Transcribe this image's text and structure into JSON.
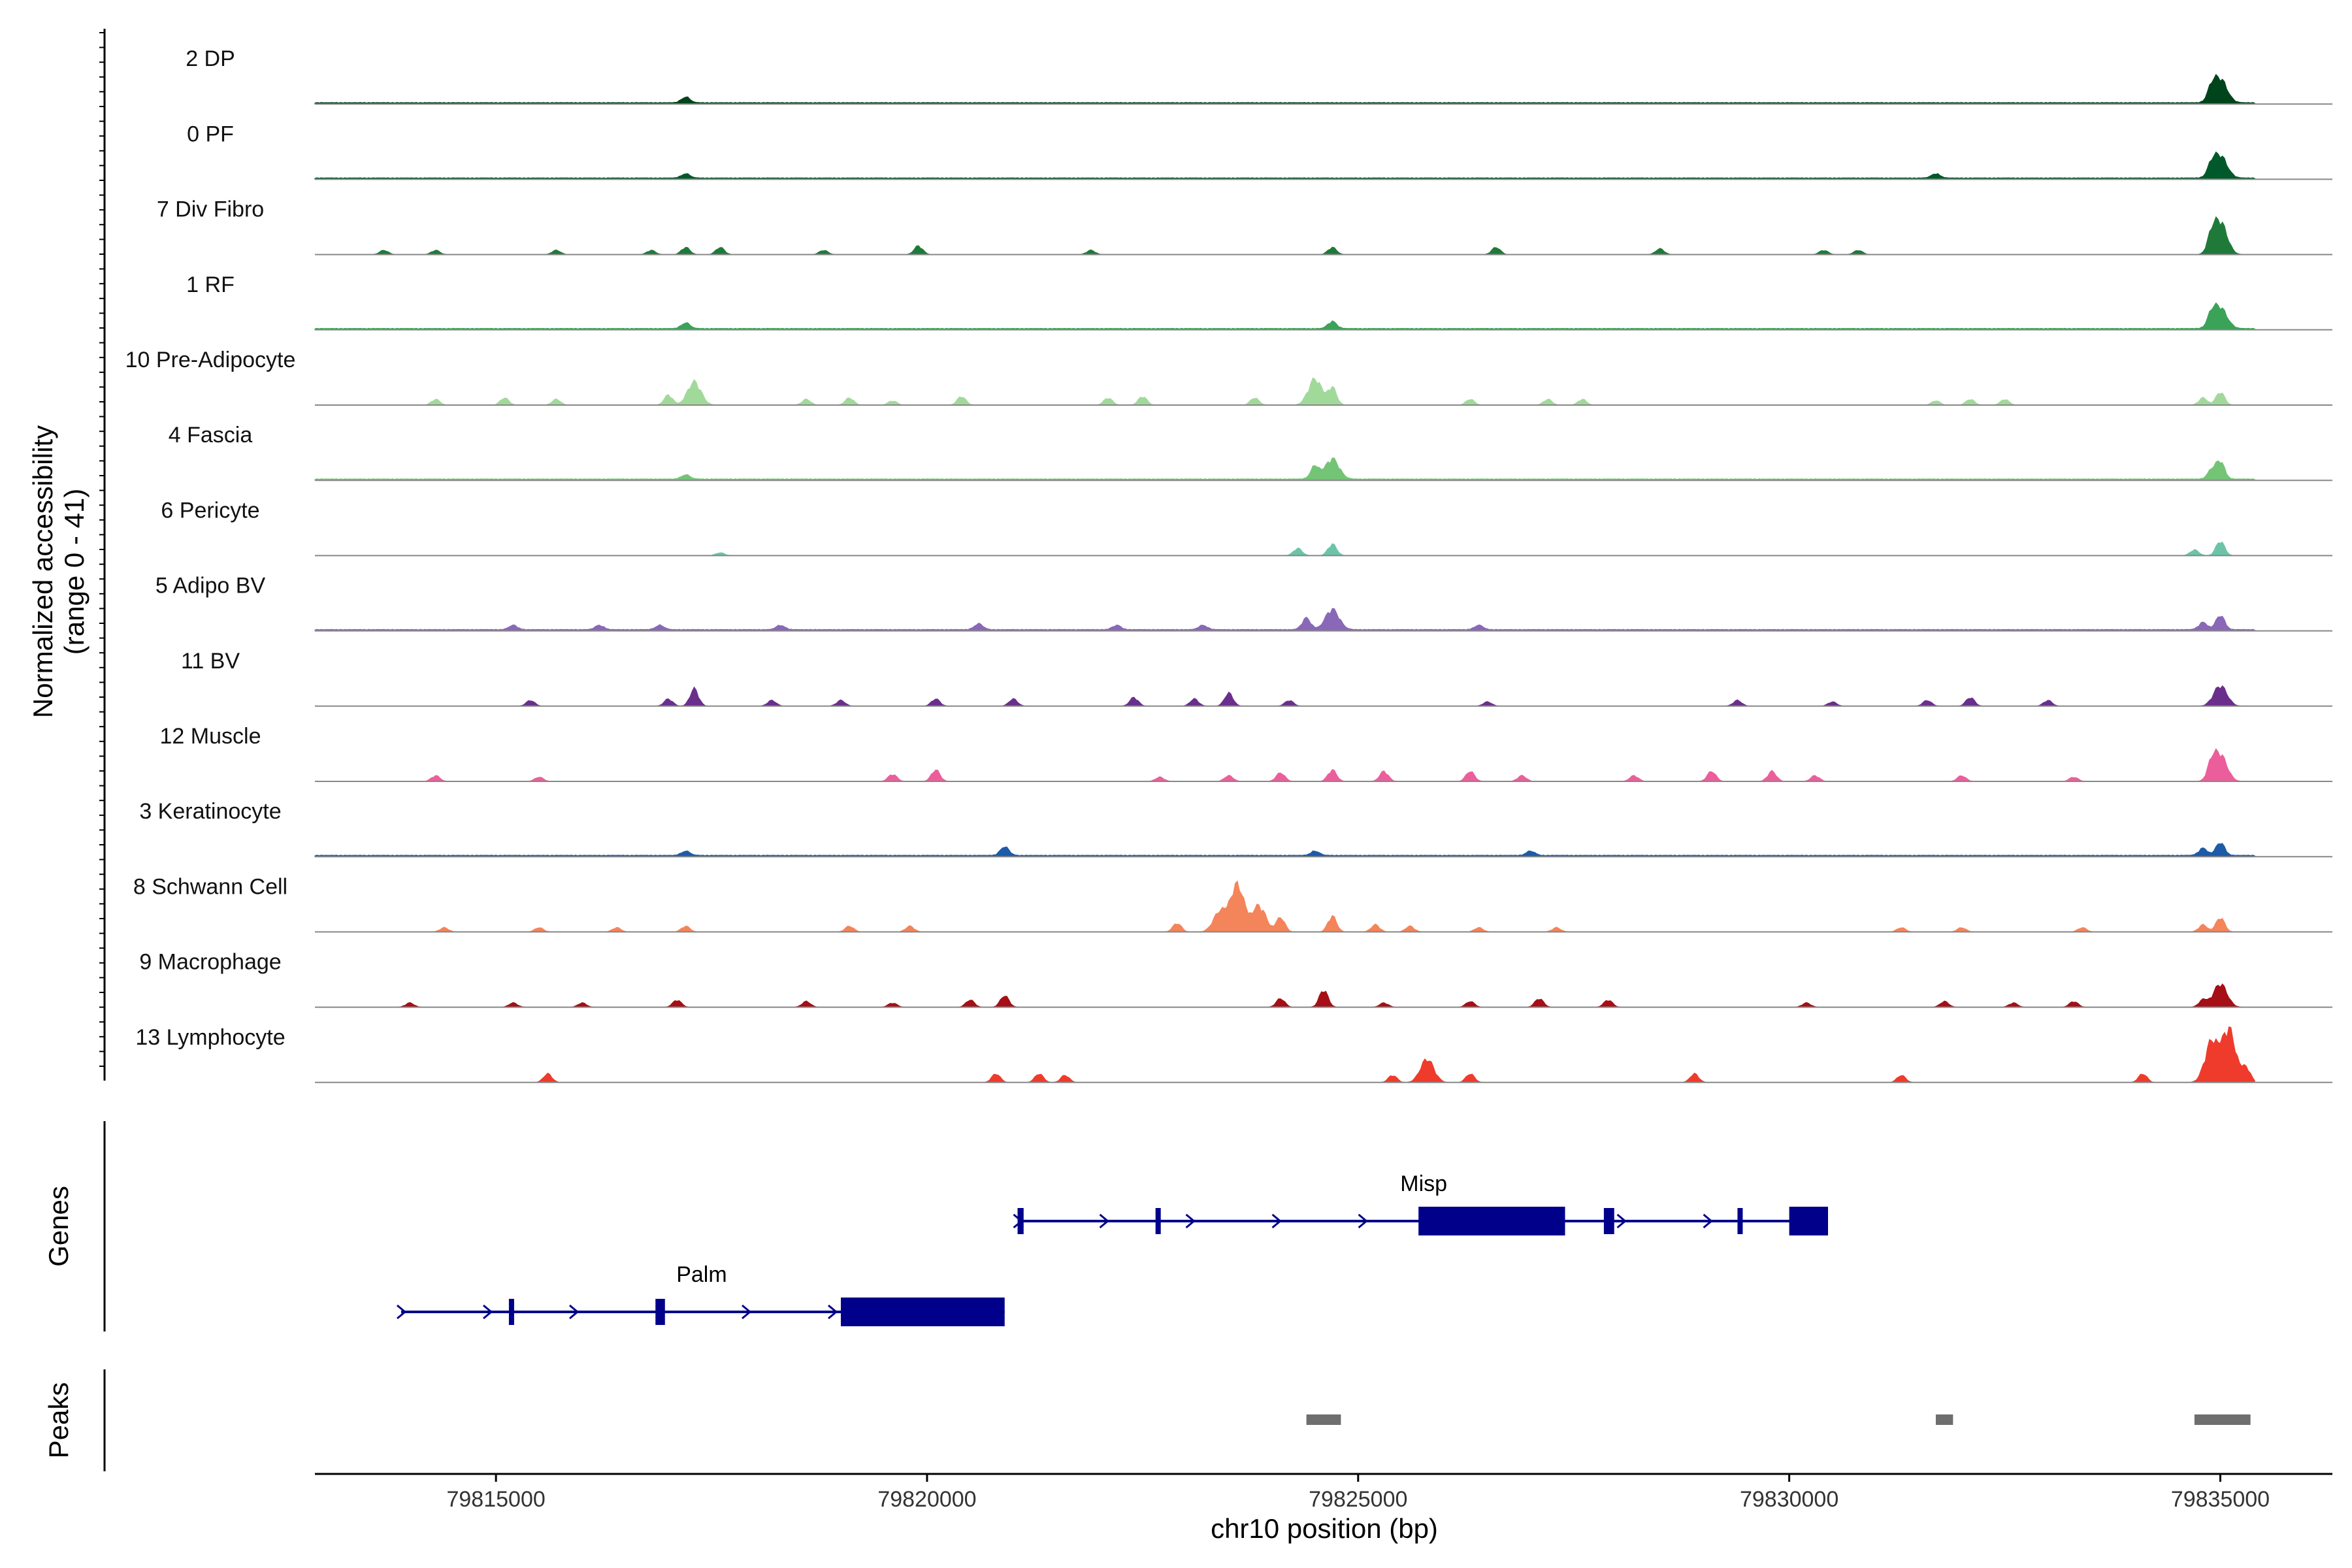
{
  "chart_data": {
    "type": "area",
    "region": "chr10",
    "xlabel": "chr10 position (bp)",
    "ylabel_line1": "Normalized accessibility",
    "ylabel_line2": "(range 0 - 41)",
    "y_range": [
      0,
      41
    ],
    "x_range": [
      79812900,
      79836300
    ],
    "x_ticks": [
      79815000,
      79820000,
      79825000,
      79830000,
      79835000
    ],
    "x_tick_labels": [
      "79815000",
      "79820000",
      "79825000",
      "79830000",
      "79835000"
    ],
    "track_start": 79812900,
    "track_end": 79835400,
    "series": [
      {
        "name": "2 DP",
        "color": "#00441b",
        "baseline": 1,
        "peaks": [
          [
            79817200,
            4
          ],
          [
            79835000,
            16
          ],
          [
            79834900,
            8
          ]
        ]
      },
      {
        "name": "0 PF",
        "color": "#00592a",
        "baseline": 1,
        "peaks": [
          [
            79817200,
            3
          ],
          [
            79831700,
            3
          ],
          [
            79835000,
            15
          ],
          [
            79834900,
            7
          ]
        ]
      },
      {
        "name": "7 Div Fibro",
        "color": "#1f7a3a",
        "baseline": 0,
        "peaks": [
          [
            79813700,
            3
          ],
          [
            79814300,
            3
          ],
          [
            79815700,
            3
          ],
          [
            79816800,
            3
          ],
          [
            79817200,
            5
          ],
          [
            79817600,
            5
          ],
          [
            79818800,
            3
          ],
          [
            79819900,
            6
          ],
          [
            79821900,
            3
          ],
          [
            79824700,
            5
          ],
          [
            79826600,
            5
          ],
          [
            79828500,
            4
          ],
          [
            79830400,
            3
          ],
          [
            79830800,
            3
          ],
          [
            79835000,
            22
          ],
          [
            79834900,
            10
          ]
        ]
      },
      {
        "name": "1 RF",
        "color": "#3aa357",
        "baseline": 1,
        "peaks": [
          [
            79817200,
            4
          ],
          [
            79824700,
            5
          ],
          [
            79835000,
            14
          ],
          [
            79834900,
            8
          ]
        ]
      },
      {
        "name": "10 Pre-Adipocyte",
        "color": "#a1d99b",
        "baseline": 0,
        "peaks": [
          [
            79814300,
            4
          ],
          [
            79815100,
            5
          ],
          [
            79815700,
            4
          ],
          [
            79817000,
            7
          ],
          [
            79817300,
            16
          ],
          [
            79818600,
            4
          ],
          [
            79819100,
            5
          ],
          [
            79819600,
            3
          ],
          [
            79820400,
            6
          ],
          [
            79822100,
            5
          ],
          [
            79822500,
            6
          ],
          [
            79823800,
            5
          ],
          [
            79824500,
            18
          ],
          [
            79824700,
            12
          ],
          [
            79826300,
            4
          ],
          [
            79827200,
            4
          ],
          [
            79827600,
            4
          ],
          [
            79831700,
            3
          ],
          [
            79832100,
            4
          ],
          [
            79832500,
            4
          ],
          [
            79834800,
            5
          ],
          [
            79835000,
            9
          ]
        ]
      },
      {
        "name": "4 Fascia",
        "color": "#74c476",
        "baseline": 1,
        "peaks": [
          [
            79817200,
            3
          ],
          [
            79824500,
            9
          ],
          [
            79824700,
            14
          ],
          [
            79835000,
            12
          ],
          [
            79834900,
            6
          ]
        ]
      },
      {
        "name": "6 Pericyte",
        "color": "#6cc4a8",
        "baseline": 0,
        "peaks": [
          [
            79817600,
            2
          ],
          [
            79824300,
            5
          ],
          [
            79824700,
            8
          ],
          [
            79834700,
            4
          ],
          [
            79835000,
            10
          ]
        ]
      },
      {
        "name": "5 Adipo BV",
        "color": "#8968b7",
        "baseline": 1,
        "peaks": [
          [
            79815200,
            3
          ],
          [
            79816200,
            3
          ],
          [
            79816900,
            3
          ],
          [
            79818300,
            3
          ],
          [
            79820600,
            4
          ],
          [
            79822200,
            3
          ],
          [
            79823200,
            3
          ],
          [
            79824400,
            8
          ],
          [
            79824700,
            14
          ],
          [
            79826400,
            3
          ],
          [
            79835000,
            10
          ],
          [
            79834800,
            5
          ]
        ]
      },
      {
        "name": "11 BV",
        "color": "#6a2f8c",
        "baseline": 0,
        "peaks": [
          [
            79815400,
            4
          ],
          [
            79817000,
            5
          ],
          [
            79817300,
            12
          ],
          [
            79818200,
            4
          ],
          [
            79819000,
            4
          ],
          [
            79820100,
            5
          ],
          [
            79821000,
            5
          ],
          [
            79822400,
            6
          ],
          [
            79823100,
            5
          ],
          [
            79823500,
            9
          ],
          [
            79824200,
            4
          ],
          [
            79826500,
            3
          ],
          [
            79829400,
            4
          ],
          [
            79830500,
            3
          ],
          [
            79831600,
            4
          ],
          [
            79832100,
            6
          ],
          [
            79833000,
            4
          ],
          [
            79835000,
            14
          ]
        ]
      },
      {
        "name": "12 Muscle",
        "color": "#ec5e9b",
        "baseline": 0,
        "peaks": [
          [
            79814300,
            4
          ],
          [
            79815500,
            3
          ],
          [
            79819600,
            5
          ],
          [
            79820100,
            8
          ],
          [
            79822700,
            3
          ],
          [
            79823500,
            4
          ],
          [
            79824100,
            6
          ],
          [
            79824700,
            8
          ],
          [
            79825300,
            7
          ],
          [
            79826300,
            7
          ],
          [
            79826900,
            4
          ],
          [
            79828200,
            4
          ],
          [
            79829100,
            7
          ],
          [
            79829800,
            7
          ],
          [
            79830300,
            4
          ],
          [
            79832000,
            4
          ],
          [
            79833300,
            3
          ],
          [
            79835000,
            18
          ],
          [
            79834900,
            10
          ]
        ]
      },
      {
        "name": "3 Keratinocyte",
        "color": "#1d5ba8",
        "baseline": 1,
        "peaks": [
          [
            79817200,
            3
          ],
          [
            79820900,
            6
          ],
          [
            79824500,
            3
          ],
          [
            79827000,
            3
          ],
          [
            79835000,
            9
          ],
          [
            79834800,
            5
          ]
        ]
      },
      {
        "name": "8 Schwann Cell",
        "color": "#f4845a",
        "baseline": 0,
        "peaks": [
          [
            79814400,
            3
          ],
          [
            79815500,
            3
          ],
          [
            79816400,
            3
          ],
          [
            79817200,
            4
          ],
          [
            79819100,
            4
          ],
          [
            79819800,
            4
          ],
          [
            79822900,
            6
          ],
          [
            79823400,
            14
          ],
          [
            79823600,
            32
          ],
          [
            79823850,
            18
          ],
          [
            79824100,
            10
          ],
          [
            79824700,
            11
          ],
          [
            79825200,
            5
          ],
          [
            79825600,
            4
          ],
          [
            79826400,
            3
          ],
          [
            79827300,
            3
          ],
          [
            79831300,
            3
          ],
          [
            79832000,
            3
          ],
          [
            79833400,
            3
          ],
          [
            79835000,
            10
          ],
          [
            79834800,
            5
          ]
        ]
      },
      {
        "name": "9 Macrophage",
        "color": "#a50f15",
        "baseline": 0,
        "peaks": [
          [
            79814000,
            3
          ],
          [
            79815200,
            3
          ],
          [
            79816000,
            3
          ],
          [
            79817100,
            5
          ],
          [
            79818600,
            4
          ],
          [
            79819600,
            3
          ],
          [
            79820500,
            5
          ],
          [
            79820900,
            8
          ],
          [
            79824100,
            6
          ],
          [
            79824600,
            12
          ],
          [
            79825300,
            3
          ],
          [
            79826300,
            4
          ],
          [
            79827100,
            6
          ],
          [
            79827900,
            5
          ],
          [
            79830200,
            3
          ],
          [
            79831800,
            4
          ],
          [
            79832600,
            3
          ],
          [
            79833300,
            4
          ],
          [
            79834800,
            5
          ],
          [
            79835000,
            16
          ]
        ]
      },
      {
        "name": "13 Lymphocyte",
        "color": "#ef3b2c",
        "baseline": 0,
        "peaks": [
          [
            79815600,
            6
          ],
          [
            79820800,
            6
          ],
          [
            79821300,
            6
          ],
          [
            79821600,
            5
          ],
          [
            79825400,
            5
          ],
          [
            79825800,
            16
          ],
          [
            79826300,
            6
          ],
          [
            79828900,
            6
          ],
          [
            79831300,
            5
          ],
          [
            79834100,
            6
          ],
          [
            79834900,
            28
          ],
          [
            79835100,
            36
          ],
          [
            79835300,
            10
          ]
        ]
      }
    ],
    "genes": [
      {
        "name": "Misp",
        "strand": "+",
        "start": 79821050,
        "end": 79830450,
        "row": 0,
        "exons": [
          [
            79821050,
            79821120
          ],
          [
            79822650,
            79822700
          ],
          [
            79825700,
            79827400
          ],
          [
            79827850,
            79827970
          ],
          [
            79829400,
            79829430
          ],
          [
            79830000,
            79830450
          ]
        ]
      },
      {
        "name": "Palm",
        "strand": "+",
        "start": 79813900,
        "end": 79820900,
        "row": 1,
        "exons": [
          [
            79815150,
            79815200
          ],
          [
            79816850,
            79816960
          ],
          [
            79819000,
            79820900
          ]
        ]
      }
    ],
    "peak_regions": [
      [
        79824400,
        79824800
      ],
      [
        79831700,
        79831900
      ],
      [
        79834700,
        79835350
      ]
    ],
    "track_titles": {
      "genes": "Genes",
      "peaks": "Peaks"
    }
  }
}
